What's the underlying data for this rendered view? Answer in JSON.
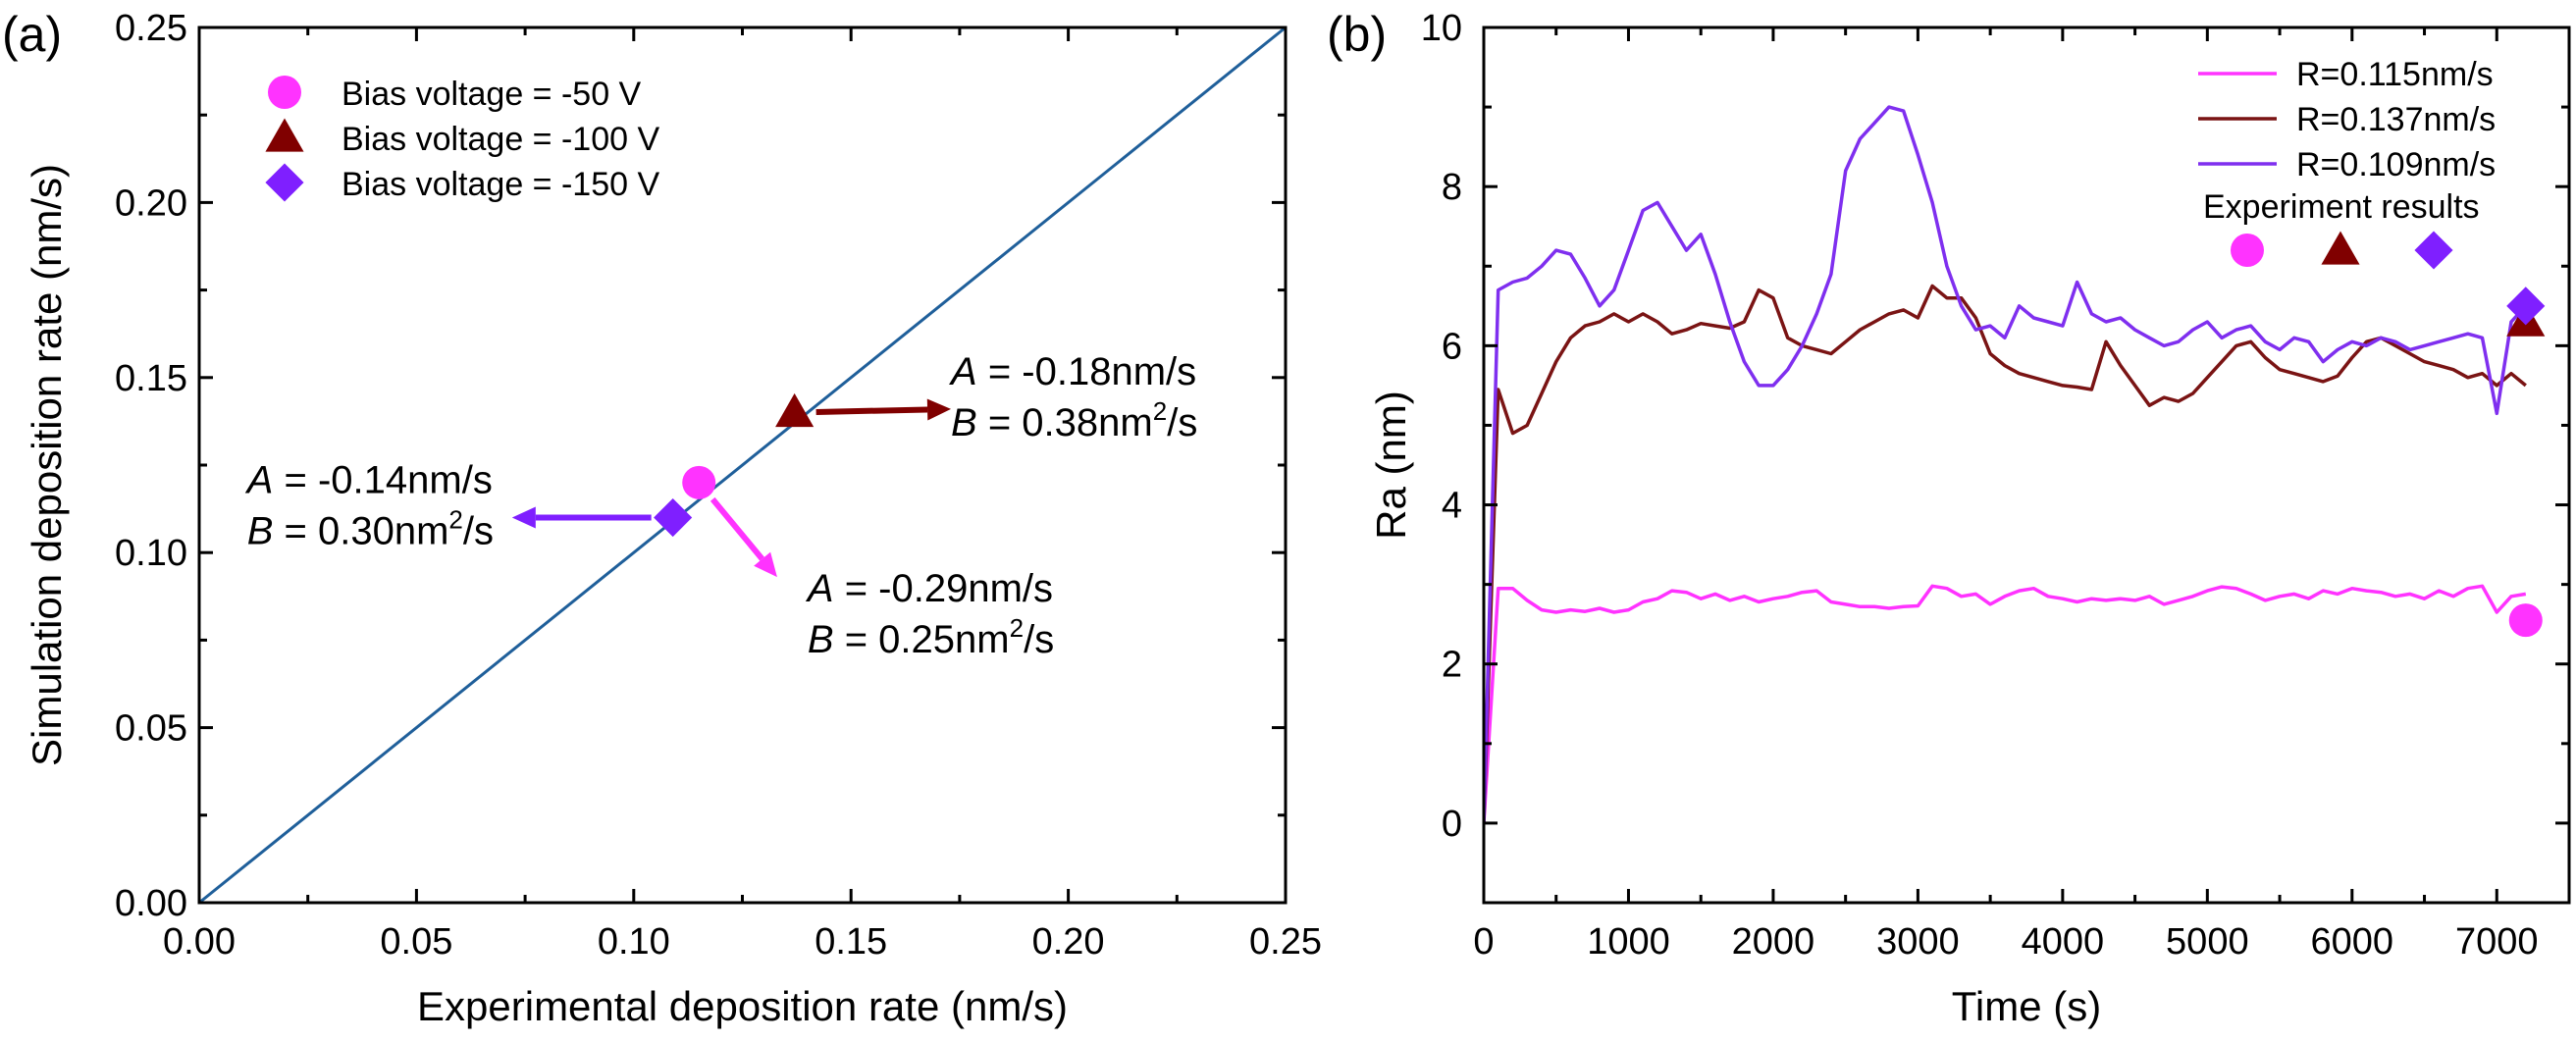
{
  "chart_data": [
    {
      "panel": "(a)",
      "type": "scatter",
      "xlabel": "Experimental deposition rate (nm/s)",
      "ylabel": "Simulation deposition rate (nm/s)",
      "xlim": [
        0,
        0.25
      ],
      "ylim": [
        0,
        0.25
      ],
      "xticks": [
        "0.00",
        "0.05",
        "0.10",
        "0.15",
        "0.20",
        "0.25"
      ],
      "yticks": [
        "0.00",
        "0.05",
        "0.10",
        "0.15",
        "0.20",
        "0.25"
      ],
      "reference_line": {
        "x": [
          0,
          0.25
        ],
        "y": [
          0,
          0.25
        ],
        "color": "#1f5f9a"
      },
      "series": [
        {
          "name": "Bias voltage = -50 V",
          "marker": "circle",
          "color": "#ff33ff",
          "x": 0.115,
          "y": 0.12
        },
        {
          "name": "Bias voltage = -100 V",
          "marker": "triangle",
          "color": "#800000",
          "x": 0.137,
          "y": 0.14
        },
        {
          "name": "Bias voltage = -150 V",
          "marker": "diamond",
          "color": "#7f1fff",
          "x": 0.109,
          "y": 0.11
        }
      ],
      "annotations": [
        {
          "series": "Bias voltage = -100 V",
          "a_label": "A",
          "a_value": " = -0.18nm/s",
          "b_label": "B",
          "b_value": " = 0.38nm",
          "b_sup": "2",
          "b_unit": "/s",
          "arrow_to": [
            0.173,
            0.141
          ],
          "text_at": [
            0.173,
            0.148
          ]
        },
        {
          "series": "Bias voltage = -150 V",
          "a_label": "A",
          "a_value": " = -0.14nm/s",
          "b_label": "B",
          "b_value": " = 0.30nm",
          "b_sup": "2",
          "b_unit": "/s",
          "arrow_to": [
            0.072,
            0.11
          ],
          "text_at": [
            0.011,
            0.117
          ]
        },
        {
          "series": "Bias voltage = -50 V",
          "a_label": "A",
          "a_value": " = -0.29nm/s",
          "b_label": "B",
          "b_value": " = 0.25nm",
          "b_sup": "2",
          "b_unit": "/s",
          "arrow_to": [
            0.133,
            0.093
          ],
          "text_at": [
            0.14,
            0.086
          ]
        }
      ]
    },
    {
      "panel": "(b)",
      "type": "line",
      "xlabel": "Time (s)",
      "ylabel": "Ra (nm)",
      "xlim": [
        0,
        7500
      ],
      "ylim": [
        -1,
        10
      ],
      "xticks": [
        "0",
        "1000",
        "2000",
        "3000",
        "4000",
        "5000",
        "6000",
        "7000"
      ],
      "yticks": [
        "0",
        "2",
        "4",
        "6",
        "8",
        "10"
      ],
      "series": [
        {
          "name": "R=0.115nm/s",
          "color": "#ff33ff",
          "x": [
            0,
            100,
            200,
            300,
            400,
            500,
            600,
            700,
            800,
            900,
            1000,
            1100,
            1200,
            1300,
            1400,
            1500,
            1600,
            1700,
            1800,
            1900,
            2000,
            2100,
            2200,
            2300,
            2400,
            2500,
            2600,
            2700,
            2800,
            2900,
            3000,
            3100,
            3200,
            3300,
            3400,
            3500,
            3600,
            3700,
            3800,
            3900,
            4000,
            4100,
            4200,
            4300,
            4400,
            4500,
            4600,
            4700,
            4800,
            4900,
            5000,
            5100,
            5200,
            5300,
            5400,
            5500,
            5600,
            5700,
            5800,
            5900,
            6000,
            6100,
            6200,
            6300,
            6400,
            6500,
            6600,
            6700,
            6800,
            6900,
            7000,
            7100,
            7200
          ],
          "y": [
            0.0,
            2.95,
            2.95,
            2.8,
            2.68,
            2.65,
            2.68,
            2.66,
            2.7,
            2.65,
            2.68,
            2.78,
            2.82,
            2.92,
            2.9,
            2.82,
            2.88,
            2.8,
            2.85,
            2.78,
            2.82,
            2.85,
            2.9,
            2.92,
            2.78,
            2.75,
            2.72,
            2.72,
            2.7,
            2.72,
            2.73,
            2.98,
            2.95,
            2.85,
            2.88,
            2.75,
            2.85,
            2.92,
            2.95,
            2.85,
            2.82,
            2.78,
            2.82,
            2.8,
            2.82,
            2.8,
            2.85,
            2.75,
            2.8,
            2.85,
            2.92,
            2.97,
            2.95,
            2.88,
            2.8,
            2.85,
            2.88,
            2.82,
            2.92,
            2.88,
            2.95,
            2.92,
            2.9,
            2.85,
            2.88,
            2.82,
            2.92,
            2.85,
            2.95,
            2.98,
            2.65,
            2.85,
            2.88
          ]
        },
        {
          "name": "R=0.137nm/s",
          "color": "#7a1414",
          "x": [
            0,
            100,
            200,
            300,
            400,
            500,
            600,
            700,
            800,
            900,
            1000,
            1100,
            1200,
            1300,
            1400,
            1500,
            1600,
            1700,
            1800,
            1900,
            2000,
            2100,
            2200,
            2300,
            2400,
            2500,
            2600,
            2700,
            2800,
            2900,
            3000,
            3100,
            3200,
            3300,
            3400,
            3500,
            3600,
            3700,
            3800,
            3900,
            4000,
            4100,
            4200,
            4300,
            4400,
            4500,
            4600,
            4700,
            4800,
            4900,
            5000,
            5100,
            5200,
            5300,
            5400,
            5500,
            5600,
            5700,
            5800,
            5900,
            6000,
            6100,
            6200,
            6300,
            6400,
            6500,
            6600,
            6700,
            6800,
            6900,
            7000,
            7100,
            7200
          ],
          "y": [
            0.0,
            5.45,
            4.9,
            5.0,
            5.4,
            5.8,
            6.1,
            6.25,
            6.3,
            6.4,
            6.3,
            6.4,
            6.3,
            6.15,
            6.2,
            6.28,
            6.25,
            6.22,
            6.3,
            6.7,
            6.6,
            6.1,
            6.0,
            5.95,
            5.9,
            6.05,
            6.2,
            6.3,
            6.4,
            6.45,
            6.35,
            6.75,
            6.6,
            6.6,
            6.35,
            5.9,
            5.75,
            5.65,
            5.6,
            5.55,
            5.5,
            5.48,
            5.45,
            6.05,
            5.75,
            5.5,
            5.25,
            5.35,
            5.3,
            5.4,
            5.6,
            5.8,
            6.0,
            6.05,
            5.85,
            5.7,
            5.65,
            5.6,
            5.55,
            5.62,
            5.85,
            6.05,
            6.1,
            6.0,
            5.9,
            5.8,
            5.75,
            5.7,
            5.6,
            5.65,
            5.5,
            5.65,
            5.5
          ]
        },
        {
          "name": "R=0.109nm/s",
          "color": "#7f2fef",
          "x": [
            0,
            100,
            200,
            300,
            400,
            500,
            600,
            700,
            800,
            900,
            1000,
            1100,
            1200,
            1300,
            1400,
            1500,
            1600,
            1700,
            1800,
            1900,
            2000,
            2100,
            2200,
            2300,
            2400,
            2500,
            2600,
            2700,
            2800,
            2900,
            3000,
            3100,
            3200,
            3300,
            3400,
            3500,
            3600,
            3700,
            3800,
            3900,
            4000,
            4100,
            4200,
            4300,
            4400,
            4500,
            4600,
            4700,
            4800,
            4900,
            5000,
            5100,
            5200,
            5300,
            5400,
            5500,
            5600,
            5700,
            5800,
            5900,
            6000,
            6100,
            6200,
            6300,
            6400,
            6500,
            6600,
            6700,
            6800,
            6900,
            7000,
            7100,
            7200
          ],
          "y": [
            0.0,
            6.7,
            6.8,
            6.85,
            7.0,
            7.2,
            7.15,
            6.85,
            6.5,
            6.7,
            7.2,
            7.7,
            7.8,
            7.5,
            7.2,
            7.4,
            6.9,
            6.3,
            5.8,
            5.5,
            5.5,
            5.7,
            6.0,
            6.4,
            6.9,
            8.2,
            8.6,
            8.8,
            9.0,
            8.95,
            8.4,
            7.8,
            7.0,
            6.5,
            6.2,
            6.25,
            6.1,
            6.5,
            6.35,
            6.3,
            6.25,
            6.8,
            6.4,
            6.3,
            6.35,
            6.2,
            6.1,
            6.0,
            6.05,
            6.2,
            6.3,
            6.1,
            6.2,
            6.25,
            6.05,
            5.95,
            6.1,
            6.05,
            5.8,
            5.95,
            6.05,
            6.0,
            6.1,
            6.05,
            5.95,
            6.0,
            6.05,
            6.1,
            6.15,
            6.1,
            5.15,
            6.3,
            6.5
          ]
        }
      ],
      "experiment_label": "Experiment results",
      "experiment_points": [
        {
          "marker": "circle",
          "color": "#ff33ff",
          "x": 7200,
          "y": 2.55
        },
        {
          "marker": "triangle",
          "color": "#800000",
          "x": 7200,
          "y": 6.3
        },
        {
          "marker": "diamond",
          "color": "#7f1fff",
          "x": 7200,
          "y": 6.5
        }
      ]
    }
  ]
}
